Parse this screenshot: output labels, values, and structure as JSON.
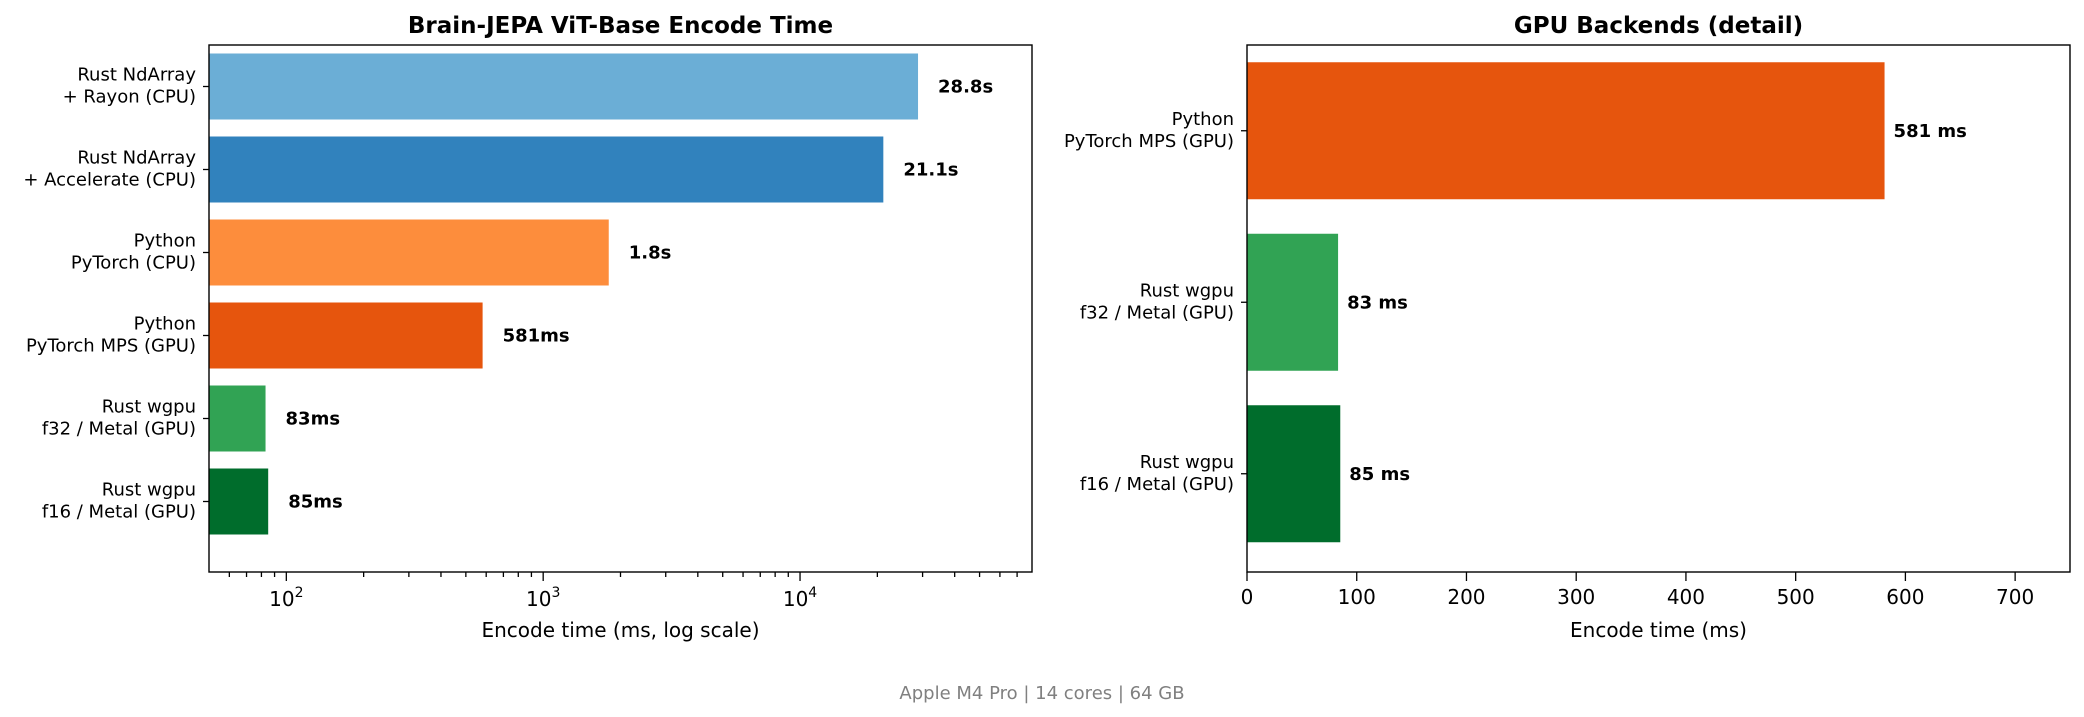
{
  "chart_data": [
    {
      "type": "bar",
      "orientation": "horizontal",
      "title": "Brain-JEPA ViT-Base Encode Time",
      "xlabel": "Encode time (ms, log scale)",
      "ylabel": "",
      "xscale": "log",
      "xlim": [
        50,
        80000
      ],
      "xticks": [
        {
          "value": 100,
          "base": "10",
          "exp": "2"
        },
        {
          "value": 1000,
          "base": "10",
          "exp": "3"
        },
        {
          "value": 10000,
          "base": "10",
          "exp": "4"
        }
      ],
      "categories": [
        [
          "Rust NdArray",
          "+ Rayon (CPU)"
        ],
        [
          "Rust NdArray",
          "+ Accelerate (CPU)"
        ],
        [
          "Python",
          "PyTorch (CPU)"
        ],
        [
          "Python",
          "PyTorch MPS (GPU)"
        ],
        [
          "Rust wgpu",
          "f32 / Metal (GPU)"
        ],
        [
          "Rust wgpu",
          "f16 / Metal (GPU)"
        ]
      ],
      "values": [
        28800,
        21100,
        1800,
        581,
        83,
        85
      ],
      "value_labels": [
        "28.8s",
        "21.1s",
        "1.8s",
        "581ms",
        "83ms",
        "85ms"
      ],
      "colors": [
        "#6baed6",
        "#3182bd",
        "#fd8d3c",
        "#e6550d",
        "#31a354",
        "#006d2c"
      ],
      "grid": false,
      "legend": "none"
    },
    {
      "type": "bar",
      "orientation": "horizontal",
      "title": "GPU Backends (detail)",
      "xlabel": "Encode time (ms)",
      "ylabel": "",
      "xscale": "linear",
      "xlim": [
        0,
        750
      ],
      "xticks": [
        0,
        100,
        200,
        300,
        400,
        500,
        600,
        700
      ],
      "categories": [
        [
          "Python",
          "PyTorch MPS (GPU)"
        ],
        [
          "Rust wgpu",
          "f32 / Metal (GPU)"
        ],
        [
          "Rust wgpu",
          "f16 / Metal (GPU)"
        ]
      ],
      "values": [
        581,
        83,
        85
      ],
      "value_labels": [
        "581 ms",
        "83 ms",
        "85 ms"
      ],
      "colors": [
        "#e6550d",
        "#31a354",
        "#006d2c"
      ],
      "grid": false,
      "legend": "none"
    }
  ],
  "footer": "Apple M4 Pro  |  14 cores  |  64 GB"
}
